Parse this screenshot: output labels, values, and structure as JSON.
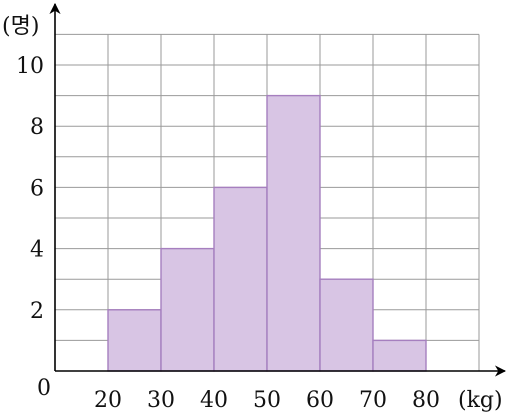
{
  "chart_data": {
    "type": "bar",
    "title": "",
    "xlabel": "(kg)",
    "ylabel": "(명)",
    "origin_label": "0",
    "x_ticks": [
      "20",
      "30",
      "40",
      "50",
      "60",
      "70",
      "80"
    ],
    "y_ticks": [
      "2",
      "4",
      "6",
      "8",
      "10"
    ],
    "bins": [
      {
        "from": 20,
        "to": 30,
        "value": 2
      },
      {
        "from": 30,
        "to": 40,
        "value": 4
      },
      {
        "from": 40,
        "to": 50,
        "value": 6
      },
      {
        "from": 50,
        "to": 60,
        "value": 9
      },
      {
        "from": 60,
        "to": 70,
        "value": 3
      },
      {
        "from": 70,
        "to": 80,
        "value": 1
      }
    ],
    "xlim": [
      10,
      90
    ],
    "ylim": [
      0,
      11
    ],
    "grid": true,
    "colors": {
      "bar_fill": "#d8c5e4",
      "bar_edge": "#a67fbf",
      "grid": "#9a9a9a"
    }
  }
}
